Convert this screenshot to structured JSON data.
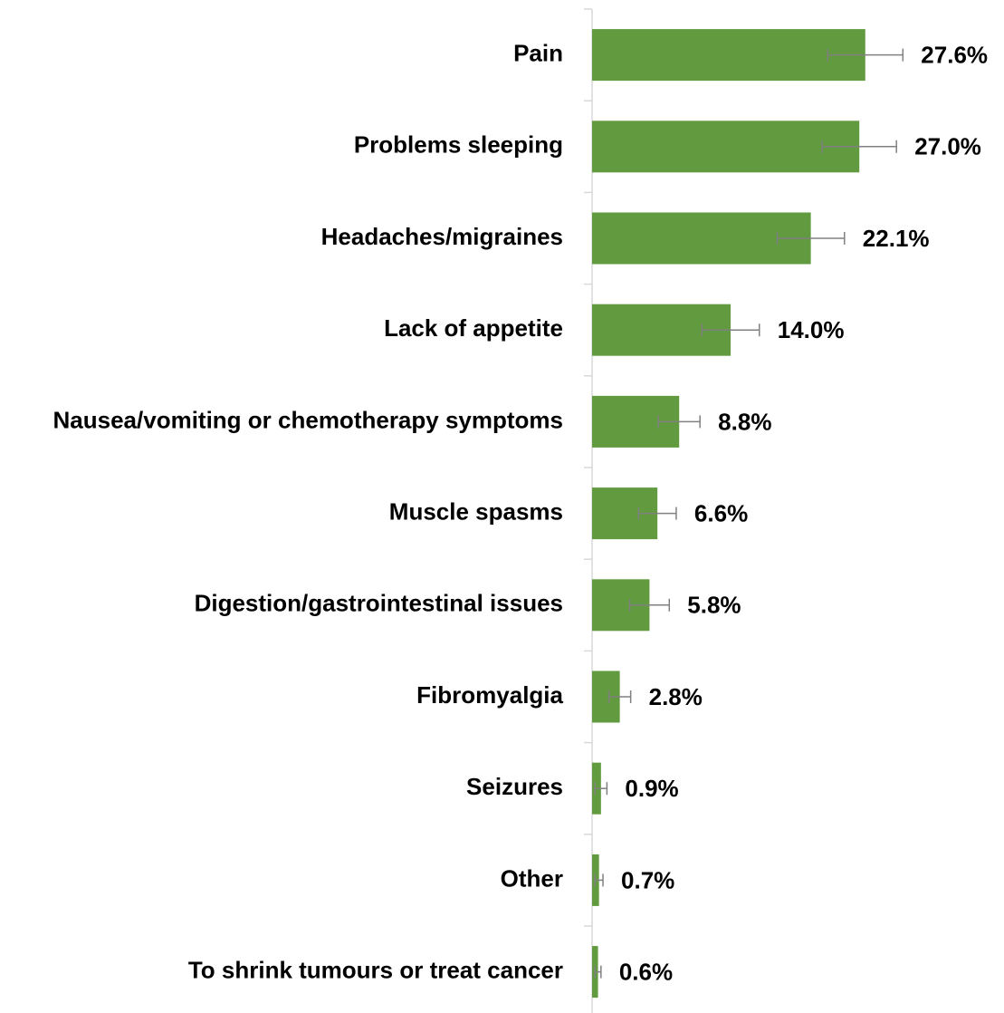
{
  "chart_data": {
    "type": "bar",
    "orientation": "horizontal",
    "categories": [
      "Pain",
      "Problems sleeping",
      "Headaches/migraines",
      "Lack of appetite",
      "Nausea/vomiting or chemotherapy symptoms",
      "Muscle spasms",
      "Digestion/gastrointestinal issues",
      "Fibromyalgia",
      "Seizures",
      "Other",
      "To shrink tumours or treat cancer"
    ],
    "values": [
      27.6,
      27.0,
      22.1,
      14.0,
      8.8,
      6.6,
      5.8,
      2.8,
      0.9,
      0.7,
      0.6
    ],
    "value_labels": [
      "27.6%",
      "27.0%",
      "22.1%",
      "14.0%",
      "8.8%",
      "6.6%",
      "5.8%",
      "2.8%",
      "0.9%",
      "0.7%",
      "0.6%"
    ],
    "errors": [
      3.8,
      3.75,
      3.4,
      2.9,
      2.1,
      1.9,
      2.0,
      1.1,
      0.6,
      0.4,
      0.3
    ],
    "color": "#629b3f",
    "error_color": "#808080",
    "xlim": [
      0,
      30
    ]
  }
}
